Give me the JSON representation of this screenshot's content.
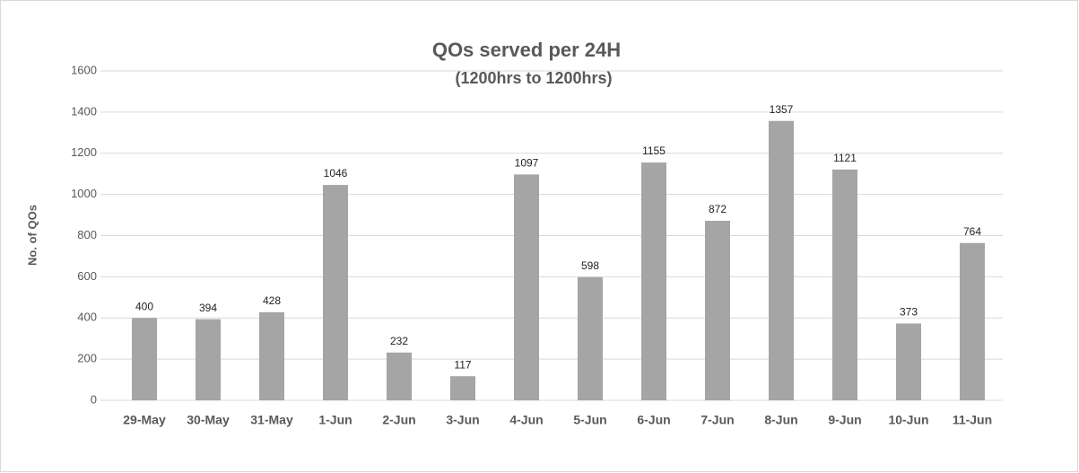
{
  "chart_data": {
    "type": "bar",
    "title": "QOs served per 24H",
    "subtitle": "(1200hrs to 1200hrs)",
    "y_label": "No. of QOs",
    "categories": [
      "29-May",
      "30-May",
      "31-May",
      "1-Jun",
      "2-Jun",
      "3-Jun",
      "4-Jun",
      "5-Jun",
      "6-Jun",
      "7-Jun",
      "8-Jun",
      "9-Jun",
      "10-Jun",
      "11-Jun"
    ],
    "values": [
      400,
      394,
      428,
      1046,
      232,
      117,
      1097,
      598,
      1155,
      872,
      1357,
      1121,
      373,
      764
    ],
    "color": "#a5a5a5",
    "ylim": [
      0,
      1600
    ],
    "yticks": [
      0,
      200,
      400,
      600,
      800,
      1000,
      1200,
      1400,
      1600
    ],
    "grid": true
  }
}
